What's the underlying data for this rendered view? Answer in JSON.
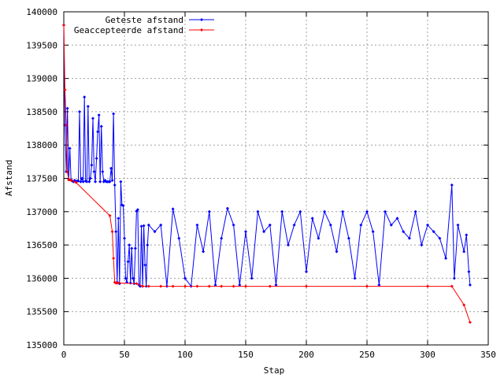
{
  "chart_data": {
    "type": "line",
    "title": "",
    "xlabel": "Stap",
    "ylabel": "Afstand",
    "xlim": [
      0,
      350
    ],
    "ylim": [
      135000,
      140000
    ],
    "xticks": [
      0,
      50,
      100,
      150,
      200,
      250,
      300,
      350
    ],
    "yticks": [
      135000,
      135500,
      136000,
      136500,
      137000,
      137500,
      138000,
      138500,
      139000,
      139500,
      140000
    ],
    "grid": true,
    "legend_position": "top-left",
    "series": [
      {
        "name": "Geteste afstand",
        "color": "#0000ff",
        "marker": "diamond",
        "x": [
          0,
          1,
          2,
          3,
          4,
          5,
          6,
          7,
          8,
          9,
          10,
          11,
          12,
          13,
          14,
          15,
          16,
          17,
          18,
          19,
          20,
          21,
          22,
          23,
          24,
          25,
          26,
          27,
          28,
          29,
          30,
          31,
          32,
          33,
          34,
          35,
          36,
          37,
          38,
          39,
          40,
          41,
          42,
          43,
          44,
          45,
          46,
          47,
          48,
          49,
          50,
          51,
          52,
          53,
          54,
          55,
          56,
          57,
          58,
          59,
          60,
          61,
          62,
          63,
          64,
          65,
          66,
          67,
          68,
          69,
          70,
          75,
          80,
          85,
          90,
          95,
          100,
          105,
          110,
          115,
          120,
          125,
          130,
          135,
          140,
          145,
          150,
          155,
          160,
          165,
          170,
          175,
          180,
          185,
          190,
          195,
          200,
          205,
          210,
          215,
          220,
          225,
          230,
          235,
          240,
          245,
          250,
          255,
          260,
          265,
          270,
          275,
          280,
          285,
          290,
          295,
          300,
          305,
          310,
          315,
          320,
          322,
          325,
          330,
          332,
          334,
          335
        ],
        "y": [
          139800,
          138300,
          137600,
          138550,
          137480,
          137950,
          137480,
          137460,
          137450,
          137470,
          137450,
          137460,
          137460,
          138500,
          137450,
          137500,
          137450,
          138720,
          137460,
          137450,
          138580,
          137450,
          137500,
          137700,
          138400,
          137600,
          137450,
          137800,
          138200,
          138450,
          137450,
          138280,
          137600,
          137450,
          137470,
          137450,
          137450,
          137450,
          137450,
          137650,
          137470,
          138470,
          137400,
          136700,
          135940,
          136900,
          135920,
          137450,
          137100,
          137090,
          136600,
          136000,
          135940,
          136250,
          136500,
          135930,
          136450,
          136000,
          135920,
          136450,
          137010,
          137030,
          135900,
          135880,
          136780,
          135880,
          136790,
          136200,
          135880,
          136500,
          136800,
          136700,
          136800,
          135880,
          137040,
          136600,
          136000,
          135880,
          136800,
          136400,
          137000,
          135900,
          136600,
          137050,
          136800,
          135900,
          136700,
          136000,
          137000,
          136700,
          136800,
          135900,
          137000,
          136500,
          136800,
          137000,
          136100,
          136900,
          136600,
          137000,
          136800,
          136400,
          137000,
          136600,
          136000,
          136800,
          137000,
          136700,
          135900,
          137000,
          136800,
          136900,
          136700,
          136600,
          137000,
          136500,
          136800,
          136700,
          136600,
          136300,
          137400,
          136000,
          136800,
          136400,
          136650,
          136100,
          135900
        ]
      },
      {
        "name": "Geaccepteerde afstand",
        "color": "#ff0000",
        "marker": "diamond",
        "x": [
          0,
          1,
          2,
          3,
          4,
          5,
          6,
          10,
          38,
          40,
          41,
          42,
          43,
          44,
          45,
          60,
          65,
          70,
          80,
          90,
          100,
          110,
          120,
          130,
          140,
          150,
          170,
          200,
          250,
          300,
          320,
          330,
          335
        ],
        "y": [
          139800,
          138830,
          138300,
          137600,
          137480,
          137480,
          137470,
          137440,
          136940,
          136700,
          136300,
          135940,
          135930,
          135930,
          135930,
          135920,
          135880,
          135880,
          135880,
          135880,
          135880,
          135880,
          135880,
          135880,
          135880,
          135880,
          135880,
          135880,
          135880,
          135880,
          135880,
          135600,
          135340
        ]
      }
    ]
  }
}
